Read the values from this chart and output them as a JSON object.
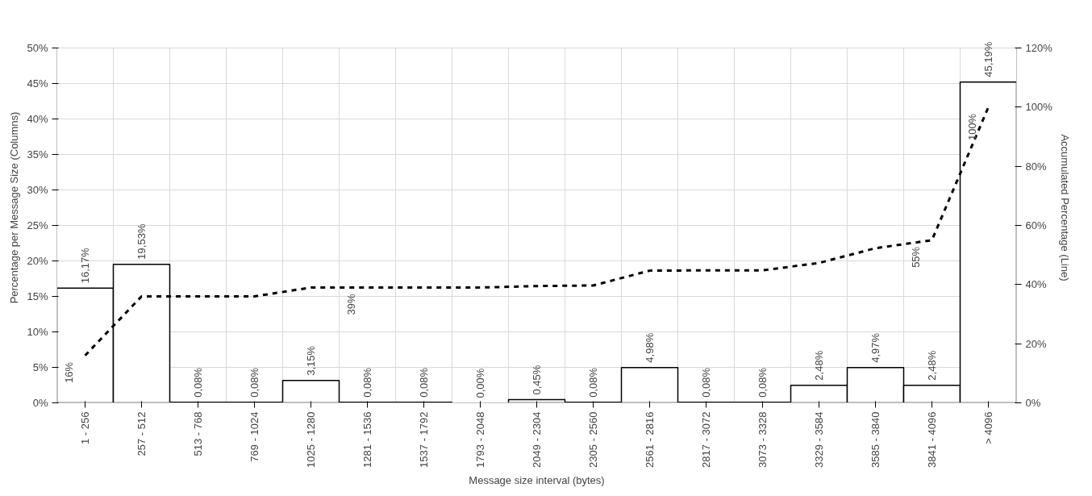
{
  "chart_data": {
    "type": "bar",
    "xlabel": "Message size interval (bytes)",
    "ylabel": "Percentage per Message Size (Columns)",
    "y2label": "Accumulated Percentage (Line)",
    "categories": [
      "1 - 256",
      "257 - 512",
      "513 - 768",
      "769 - 1024",
      "1025 - 1280",
      "1281 - 1536",
      "1537 - 1792",
      "1793 - 2048",
      "2049 - 2304",
      "2305 - 2560",
      "2561 - 2816",
      "2817 - 3072",
      "3073 - 3328",
      "3329 - 3584",
      "3585 - 3840",
      "3841 - 4096",
      "> 4096"
    ],
    "series": [
      {
        "type": "bar",
        "color": "#ffffff",
        "values": [
          16.17,
          19.53,
          0.08,
          0.08,
          3.15,
          0.08,
          0.08,
          0.0,
          0.45,
          0.08,
          4.98,
          0.08,
          0.08,
          2.48,
          4.97,
          2.48,
          45.19
        ],
        "value_labels": [
          "16,17%",
          "19,53%",
          "0,08%",
          "0,08%",
          "3,15%",
          "0,08%",
          "0,08%",
          "0,00%",
          "0,45%",
          "0,08%",
          "4,98%",
          "0,08%",
          "0,08%",
          "2,48%",
          "4,97%",
          "2,48%",
          "45,19%"
        ]
      },
      {
        "type": "line",
        "axis": "y2",
        "color": "#000000",
        "line_style": "dashed",
        "values": [
          16,
          36,
          36,
          36,
          39,
          39,
          39,
          39,
          39.5,
          39.7,
          44.7,
          44.8,
          44.8,
          47.3,
          52.3,
          55,
          100
        ],
        "value_labels": [
          "16%",
          null,
          null,
          null,
          null,
          "39%",
          null,
          null,
          null,
          null,
          null,
          null,
          null,
          null,
          null,
          "55%",
          "100%"
        ]
      }
    ],
    "ylim": [
      0,
      50
    ],
    "yticks": [
      {
        "value": 0,
        "label": "0%"
      },
      {
        "value": 5,
        "label": "5%"
      },
      {
        "value": 10,
        "label": "10%"
      },
      {
        "value": 15,
        "label": "15%"
      },
      {
        "value": 20,
        "label": "20%"
      },
      {
        "value": 25,
        "label": "25%"
      },
      {
        "value": 30,
        "label": "30%"
      },
      {
        "value": 35,
        "label": "35%"
      },
      {
        "value": 40,
        "label": "40%"
      },
      {
        "value": 45,
        "label": "45%"
      },
      {
        "value": 50,
        "label": "50%"
      }
    ],
    "y2lim": [
      0,
      120
    ],
    "y2ticks": [
      {
        "value": 0,
        "label": "0%"
      },
      {
        "value": 20,
        "label": "20%"
      },
      {
        "value": 40,
        "label": "40%"
      },
      {
        "value": 60,
        "label": "60%"
      },
      {
        "value": 80,
        "label": "80%"
      },
      {
        "value": 100,
        "label": "100%"
      },
      {
        "value": 120,
        "label": "120%"
      }
    ],
    "grid": true
  }
}
